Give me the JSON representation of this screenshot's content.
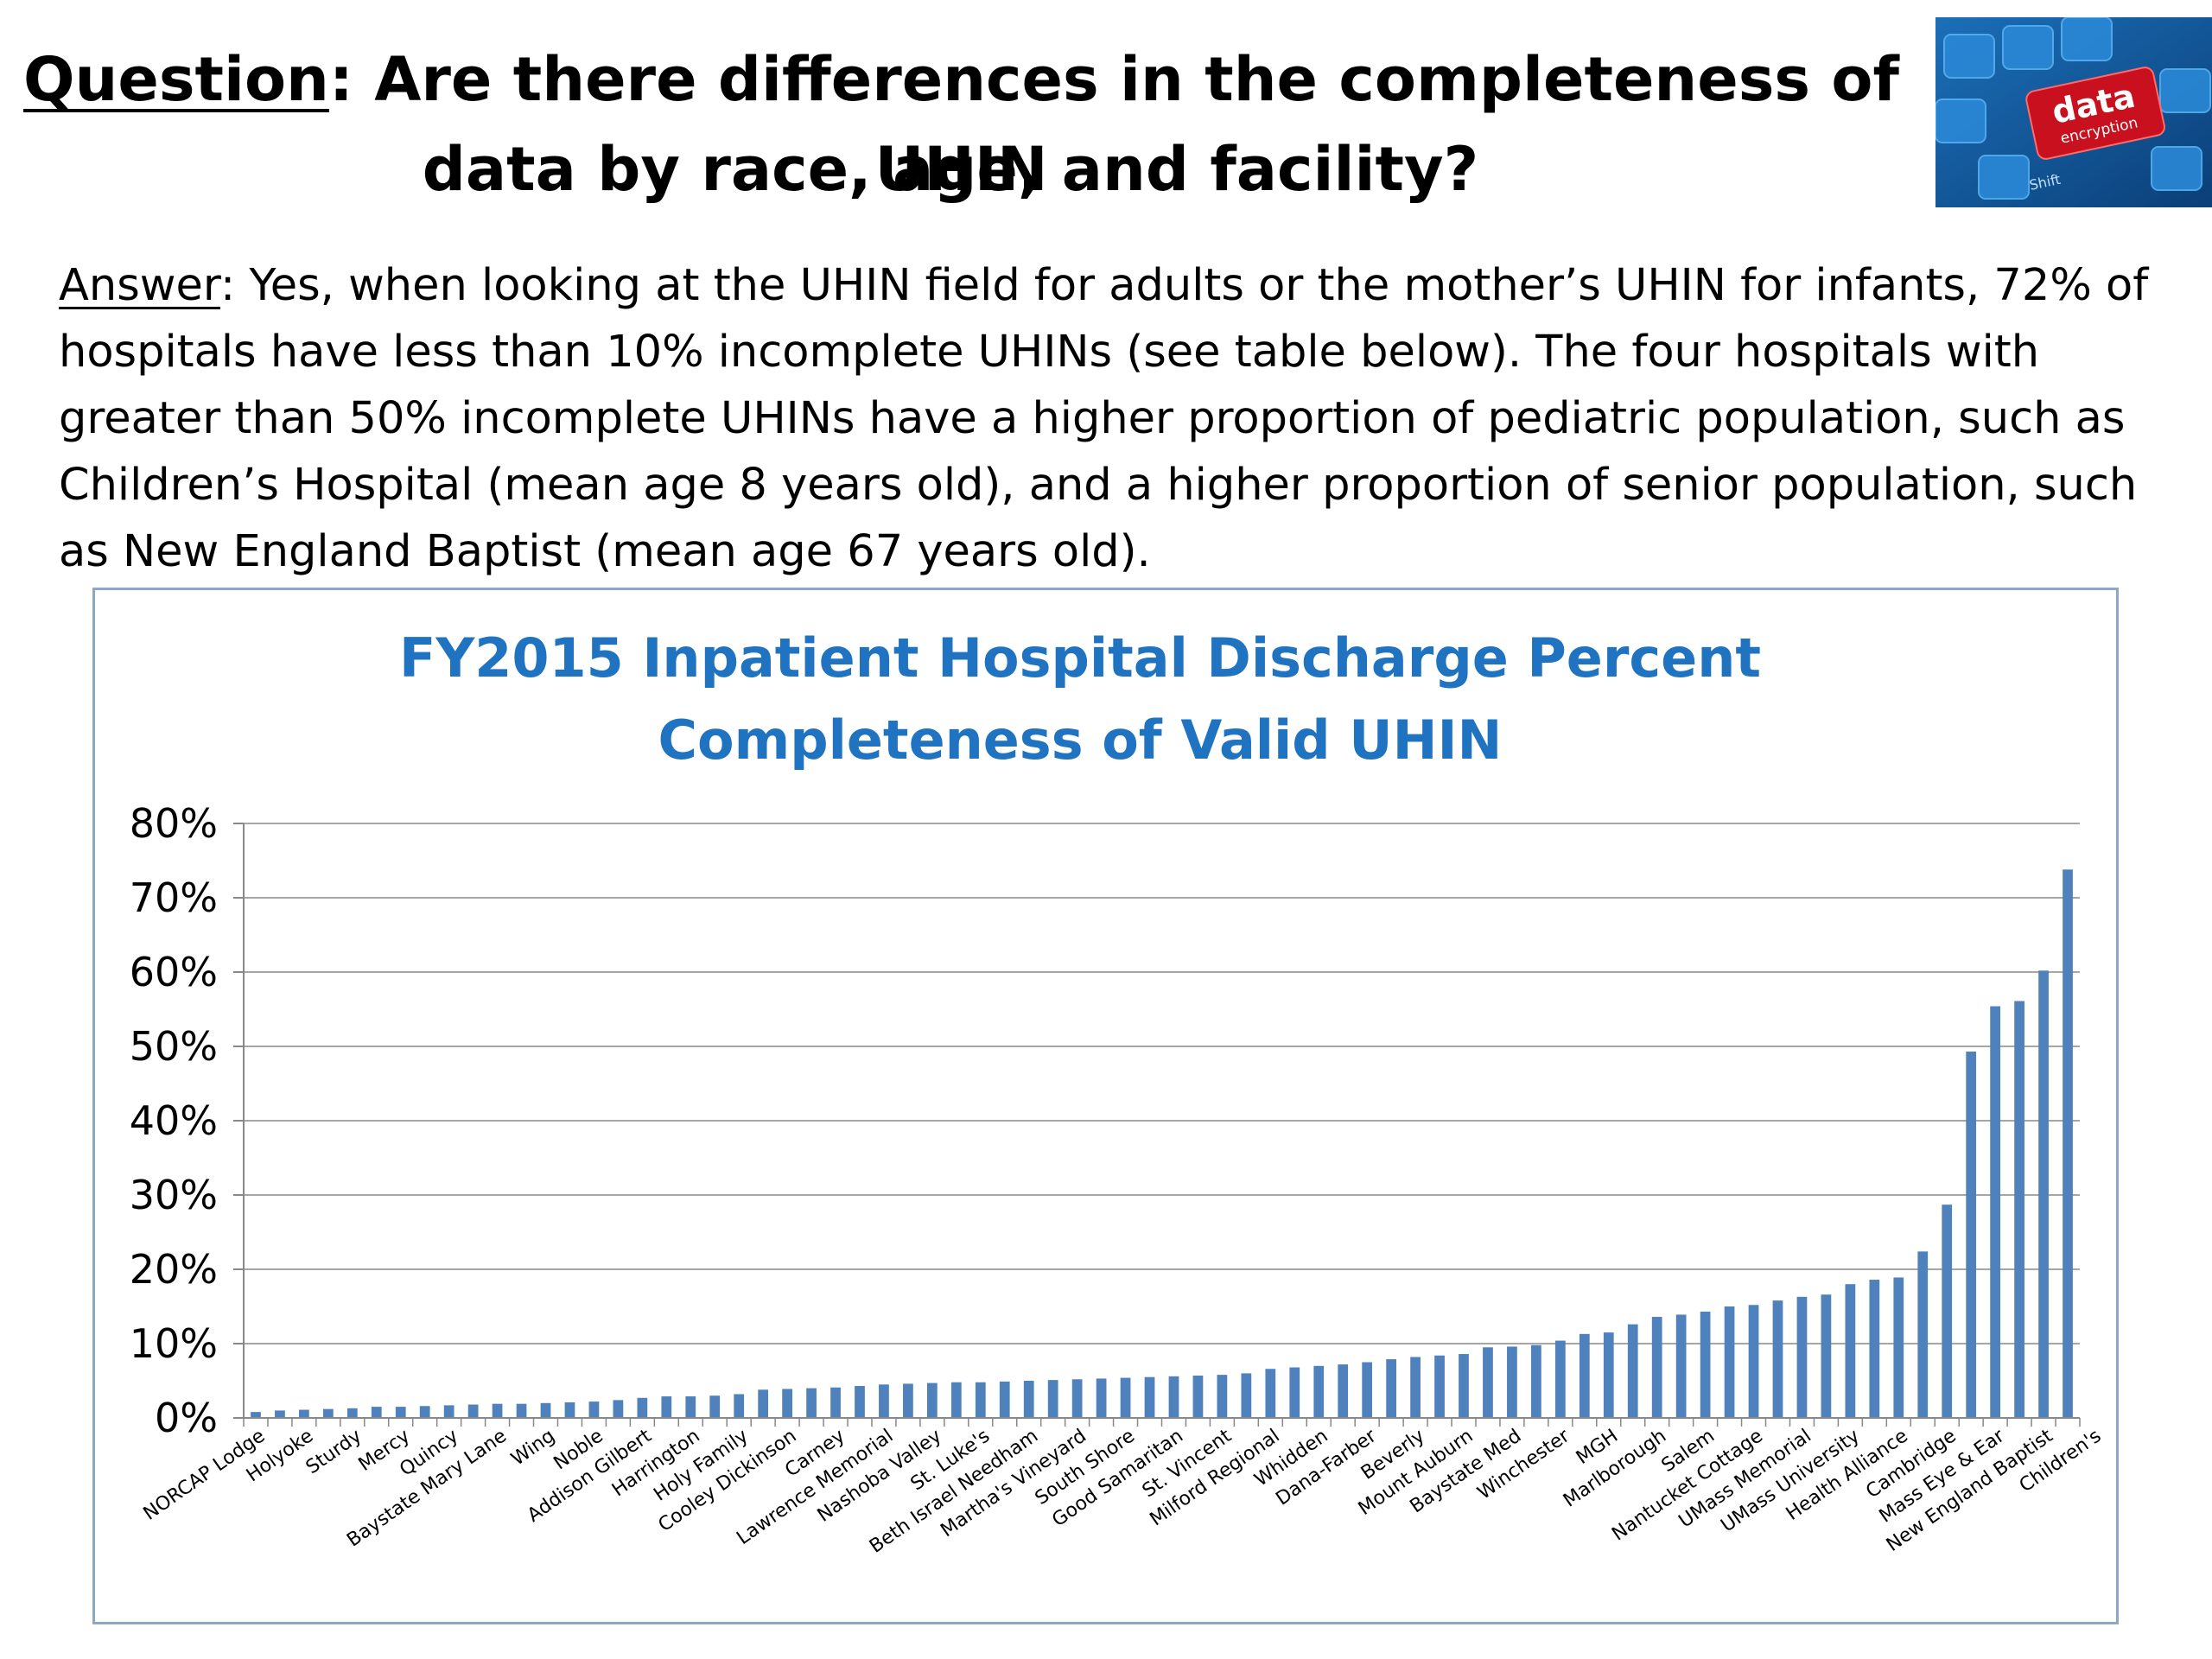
{
  "slide": {
    "question_label": "Question",
    "question_text": ":  Are there differences in the completeness of UHIN",
    "question_text_line2": "data by race, age, and facility?",
    "answer_label": "Answer",
    "answer_text": ":  Yes, when looking at the UHIN field for adults or the mother’s UHIN for infants, 72% of hospitals have less than 10% incomplete UHINs (see table below). The four hospitals with greater than 50% incomplete UHINs have a higher proportion of pediatric population, such as Children’s Hospital (mean age 8 years old), and a higher proportion of senior population, such as New England Baptist (mean age 67 years old).",
    "image_text": {
      "key_main": "data",
      "key_sub": "encryption",
      "shift": "Shift"
    }
  },
  "chart_data": {
    "type": "bar",
    "title": "FY2015 Inpatient Hospital Discharge Percent",
    "subtitle": "Completeness of Valid UHIN",
    "xlabel": "",
    "ylabel": "",
    "ylim": [
      0,
      80
    ],
    "yticks": [
      "0%",
      "10%",
      "20%",
      "30%",
      "40%",
      "50%",
      "60%",
      "70%",
      "80%"
    ],
    "grid": true,
    "colors": {
      "bar": "#4f81bd",
      "title": "#1f73c0",
      "grid": "#a6a6a6"
    },
    "labeled_categories": [
      "NORCAP Lodge",
      "Holyoke",
      "Sturdy",
      "Mercy",
      "Quincy",
      "Baystate Mary Lane",
      "Wing",
      "Noble",
      "Addison Gilbert",
      "Harrington",
      "Holy Family",
      "Cooley Dickinson",
      "Carney",
      "Lawrence Memorial",
      "Nashoba Valley",
      "St. Luke's",
      "Beth Israel Needham",
      "Martha's Vineyard",
      "South Shore",
      "Good Samaritan",
      "St. Vincent",
      "Milford Regional",
      "Whidden",
      "Dana-Farber",
      "Beverly",
      "Mount Auburn",
      "Baystate Med",
      "Winchester",
      "MGH",
      "Marlborough",
      "Salem",
      "Nantucket Cottage",
      "UMass Memorial",
      "UMass University",
      "Health Alliance",
      "Cambridge",
      "Mass Eye & Ear",
      "New England Baptist",
      "Children's"
    ],
    "values": [
      0.8,
      1.0,
      1.1,
      1.2,
      1.3,
      1.5,
      1.5,
      1.6,
      1.7,
      1.8,
      1.9,
      1.9,
      2.0,
      2.1,
      2.2,
      2.4,
      2.7,
      2.9,
      2.9,
      3.0,
      3.2,
      3.8,
      3.9,
      4.0,
      4.1,
      4.3,
      4.5,
      4.6,
      4.7,
      4.8,
      4.8,
      4.9,
      5.0,
      5.1,
      5.2,
      5.3,
      5.4,
      5.5,
      5.6,
      5.7,
      5.8,
      6.0,
      6.6,
      6.8,
      7.0,
      7.2,
      7.5,
      7.9,
      8.2,
      8.4,
      8.6,
      9.5,
      9.6,
      9.8,
      10.4,
      11.3,
      11.5,
      12.6,
      13.6,
      13.9,
      14.3,
      15.0,
      15.2,
      15.8,
      16.3,
      16.6,
      18.0,
      18.6,
      18.9,
      22.4,
      28.7,
      49.3,
      55.4,
      56.1,
      60.2,
      73.8
    ]
  }
}
